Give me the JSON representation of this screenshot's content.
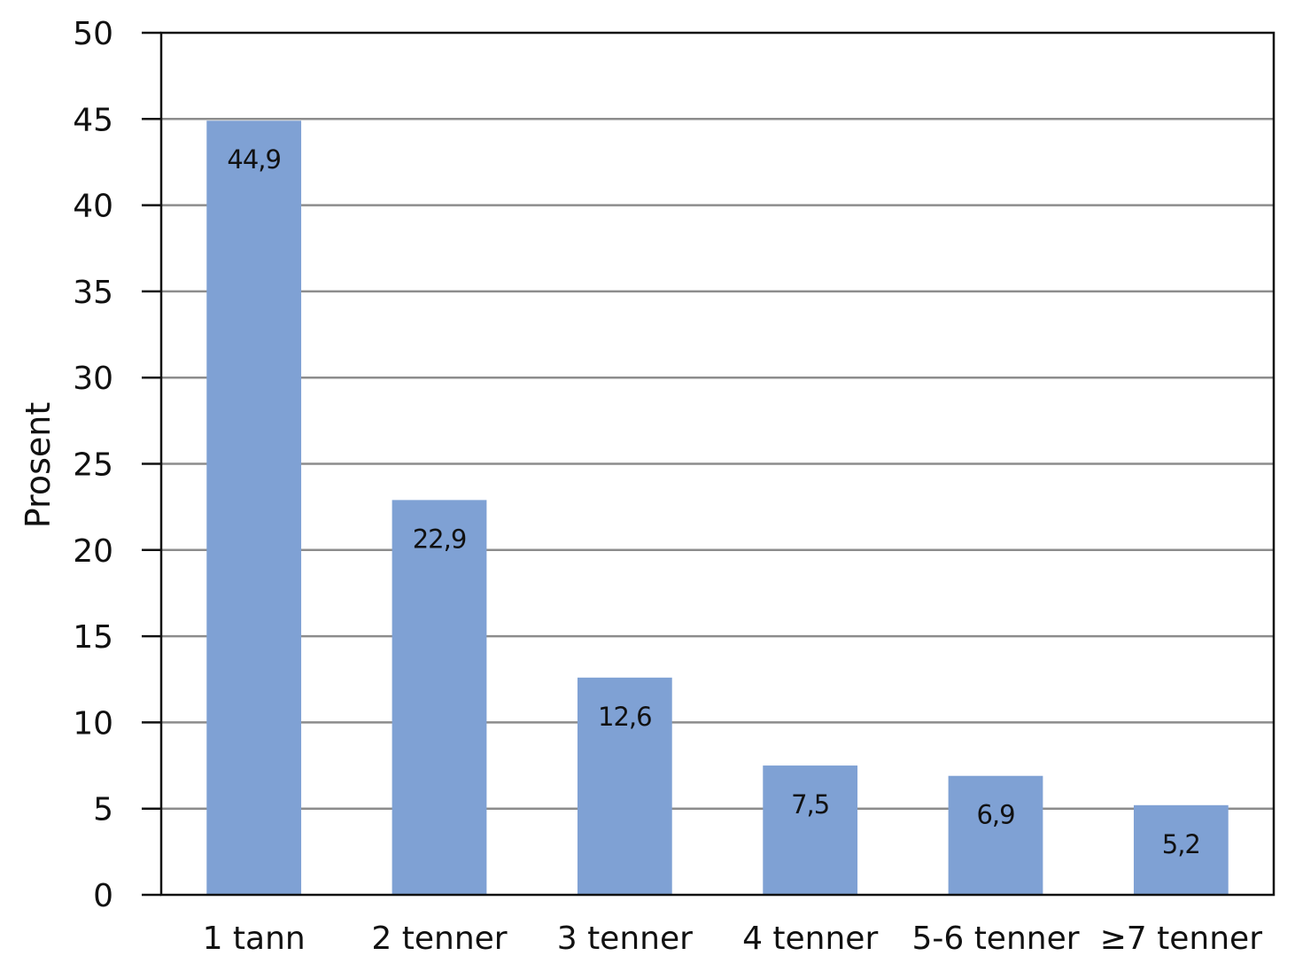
{
  "chart_data": {
    "type": "bar",
    "categories": [
      "1 tann",
      "2 tenner",
      "3 tenner",
      "4 tenner",
      "5-6 tenner",
      "≥7 tenner"
    ],
    "values": [
      44.9,
      22.9,
      12.6,
      7.5,
      6.9,
      5.2
    ],
    "data_labels": [
      "44,9",
      "22,9",
      "12,6",
      "7,5",
      "6,9",
      "5,2"
    ],
    "ylabel": "Prosent",
    "ylim": [
      0,
      50
    ],
    "yticks": [
      0,
      5,
      10,
      15,
      20,
      25,
      30,
      35,
      40,
      45,
      50
    ],
    "grid": true,
    "bar_color": "#7fa1d4"
  }
}
